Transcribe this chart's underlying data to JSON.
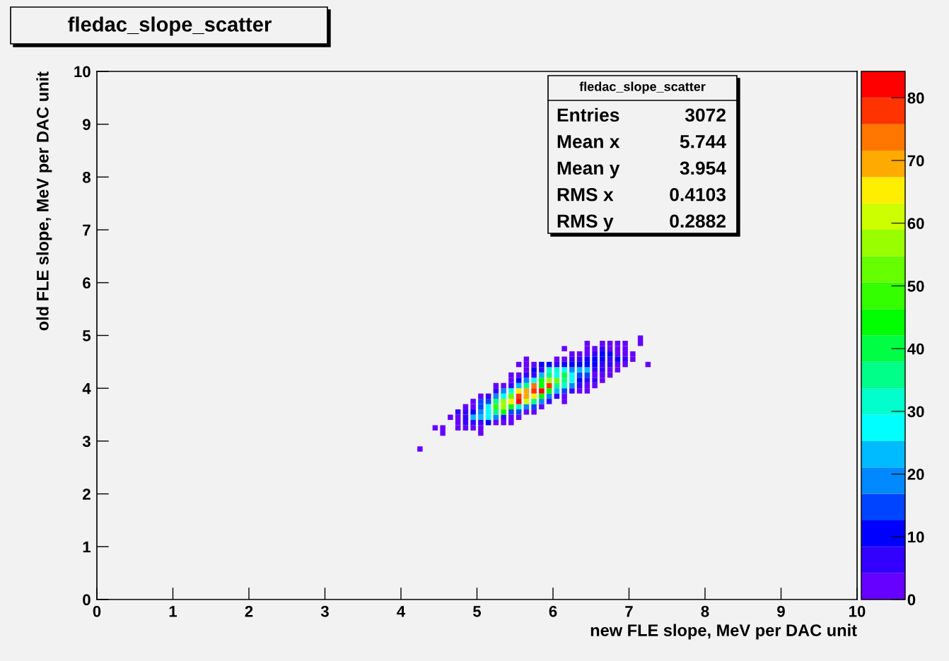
{
  "chart_data": {
    "type": "scatter",
    "title": "fledac_slope_scatter",
    "xlabel": "new FLE slope, MeV per DAC unit",
    "ylabel": "old FLE slope, MeV per DAC unit",
    "marker": "square",
    "grid": false,
    "legend": false,
    "xlim": [
      0,
      10
    ],
    "ylim": [
      0,
      10
    ],
    "xticks": [
      0,
      1,
      2,
      3,
      4,
      5,
      6,
      7,
      8,
      9,
      10
    ],
    "yticks": [
      0,
      1,
      2,
      3,
      4,
      5,
      6,
      7,
      8,
      9,
      10
    ],
    "clim": [
      0,
      84.2
    ],
    "cticks": [
      0,
      10,
      20,
      30,
      40,
      50,
      60,
      70,
      80
    ],
    "annotations": [
      "fledac_slope_scatter",
      "Entries",
      "3072",
      "Mean x",
      "5.744",
      "Mean y",
      "3.954",
      "RMS x",
      "0.4103",
      "RMS y",
      "0.2882"
    ],
    "x": [
      4.25,
      4.55,
      5.05,
      4.45,
      4.55,
      4.75,
      4.85,
      4.95,
      5.05,
      4.75,
      4.85,
      4.95,
      5.05,
      5.15,
      5.25,
      5.35,
      5.45,
      4.65,
      4.75,
      4.85,
      4.95,
      5.05,
      5.15,
      5.25,
      5.35,
      5.45,
      5.55,
      4.75,
      4.85,
      4.95,
      5.05,
      5.15,
      5.25,
      5.35,
      5.45,
      5.55,
      5.65,
      5.75,
      4.85,
      4.95,
      5.05,
      5.15,
      5.25,
      5.35,
      5.45,
      5.55,
      5.65,
      5.75,
      5.85,
      4.95,
      5.05,
      5.15,
      5.25,
      5.35,
      5.45,
      5.55,
      5.65,
      5.75,
      5.85,
      5.95,
      6.15,
      5.05,
      5.15,
      5.25,
      5.35,
      5.45,
      5.55,
      5.65,
      5.75,
      5.85,
      5.95,
      6.05,
      6.15,
      5.25,
      5.35,
      5.45,
      5.55,
      5.65,
      5.75,
      5.85,
      5.95,
      6.05,
      6.15,
      6.25,
      6.35,
      6.45,
      5.25,
      5.35,
      5.45,
      5.55,
      5.65,
      5.75,
      5.85,
      5.95,
      6.05,
      6.15,
      6.25,
      6.35,
      6.45,
      6.55,
      5.45,
      5.55,
      5.65,
      5.75,
      5.85,
      5.95,
      6.05,
      6.15,
      6.25,
      6.35,
      6.45,
      6.55,
      6.65,
      5.45,
      5.55,
      5.65,
      5.75,
      5.85,
      5.95,
      6.05,
      6.15,
      6.25,
      6.35,
      6.45,
      6.55,
      6.65,
      6.75,
      5.65,
      5.75,
      5.85,
      5.95,
      6.05,
      6.15,
      6.25,
      6.35,
      6.45,
      6.55,
      6.65,
      6.75,
      6.85,
      5.55,
      5.65,
      5.75,
      5.85,
      5.95,
      6.05,
      6.15,
      6.25,
      6.35,
      6.45,
      6.55,
      6.65,
      6.75,
      6.85,
      6.95,
      7.25,
      5.65,
      6.05,
      6.15,
      6.25,
      6.35,
      6.45,
      6.55,
      6.65,
      6.75,
      6.85,
      6.95,
      7.05,
      6.25,
      6.35,
      6.45,
      6.55,
      6.65,
      6.75,
      6.85,
      6.95,
      7.05,
      6.15,
      6.45,
      6.55,
      6.65,
      6.75,
      6.85,
      6.95,
      6.45,
      6.65,
      6.75,
      6.85,
      6.95,
      7.15,
      7.15
    ],
    "values": [
      2.85,
      3.15,
      3.15,
      3.25,
      3.25,
      3.25,
      3.25,
      3.25,
      3.25,
      3.35,
      3.35,
      3.35,
      3.35,
      3.35,
      3.35,
      3.35,
      3.35,
      3.45,
      3.45,
      3.45,
      3.45,
      3.45,
      3.45,
      3.45,
      3.45,
      3.45,
      3.45,
      3.55,
      3.55,
      3.55,
      3.55,
      3.55,
      3.55,
      3.55,
      3.55,
      3.55,
      3.55,
      3.55,
      3.65,
      3.65,
      3.65,
      3.65,
      3.65,
      3.65,
      3.65,
      3.65,
      3.65,
      3.65,
      3.65,
      3.75,
      3.75,
      3.75,
      3.75,
      3.75,
      3.75,
      3.75,
      3.75,
      3.75,
      3.75,
      3.75,
      3.75,
      3.85,
      3.85,
      3.85,
      3.85,
      3.85,
      3.85,
      3.85,
      3.85,
      3.85,
      3.85,
      3.85,
      3.85,
      3.95,
      3.95,
      3.95,
      3.95,
      3.95,
      3.95,
      3.95,
      3.95,
      3.95,
      3.95,
      3.95,
      3.95,
      3.95,
      4.05,
      4.05,
      4.05,
      4.05,
      4.05,
      4.05,
      4.05,
      4.05,
      4.05,
      4.05,
      4.05,
      4.05,
      4.05,
      4.05,
      4.15,
      4.15,
      4.15,
      4.15,
      4.15,
      4.15,
      4.15,
      4.15,
      4.15,
      4.15,
      4.15,
      4.15,
      4.15,
      4.25,
      4.25,
      4.25,
      4.25,
      4.25,
      4.25,
      4.25,
      4.25,
      4.25,
      4.25,
      4.25,
      4.25,
      4.25,
      4.25,
      4.35,
      4.35,
      4.35,
      4.35,
      4.35,
      4.35,
      4.35,
      4.35,
      4.35,
      4.35,
      4.35,
      4.35,
      4.35,
      4.45,
      4.45,
      4.45,
      4.45,
      4.45,
      4.45,
      4.45,
      4.45,
      4.45,
      4.45,
      4.45,
      4.45,
      4.45,
      4.45,
      4.45,
      4.45,
      4.55,
      4.55,
      4.55,
      4.55,
      4.55,
      4.55,
      4.55,
      4.55,
      4.55,
      4.55,
      4.55,
      4.55,
      4.65,
      4.65,
      4.65,
      4.65,
      4.65,
      4.65,
      4.65,
      4.65,
      4.65,
      4.75,
      4.75,
      4.75,
      4.75,
      4.75,
      4.75,
      4.75,
      4.85,
      4.85,
      4.85,
      4.85,
      4.85,
      4.85,
      4.95
    ],
    "cvalues": [
      2,
      2,
      2,
      2,
      2,
      2,
      2,
      2,
      2,
      2,
      6,
      6,
      6,
      11,
      2,
      2,
      2,
      2,
      2,
      6,
      23,
      23,
      27,
      19,
      6,
      2,
      2,
      6,
      6,
      11,
      19,
      27,
      36,
      44,
      15,
      15,
      2,
      2,
      2,
      2,
      15,
      27,
      48,
      57,
      44,
      32,
      19,
      15,
      2,
      2,
      15,
      15,
      36,
      57,
      65,
      82,
      61,
      36,
      19,
      6,
      2,
      2,
      6,
      19,
      27,
      53,
      78,
      69,
      65,
      44,
      19,
      6,
      2,
      6,
      19,
      32,
      65,
      69,
      78,
      82,
      44,
      23,
      15,
      6,
      2,
      2,
      2,
      2,
      6,
      23,
      36,
      74,
      44,
      78,
      36,
      32,
      19,
      6,
      2,
      2,
      2,
      11,
      19,
      27,
      44,
      57,
      53,
      36,
      27,
      11,
      6,
      6,
      2,
      2,
      2,
      6,
      6,
      23,
      36,
      27,
      40,
      27,
      15,
      15,
      2,
      2,
      2,
      2,
      11,
      6,
      32,
      32,
      27,
      19,
      23,
      23,
      6,
      6,
      2,
      2,
      2,
      2,
      2,
      11,
      11,
      6,
      11,
      11,
      11,
      11,
      11,
      6,
      6,
      2,
      2,
      2,
      2,
      2,
      2,
      6,
      6,
      11,
      11,
      11,
      6,
      11,
      6,
      2,
      2,
      2,
      2,
      6,
      11,
      11,
      2,
      2,
      2,
      2,
      2,
      2,
      6,
      2,
      2,
      2,
      2,
      2,
      2,
      2,
      2,
      2,
      2
    ]
  }
}
